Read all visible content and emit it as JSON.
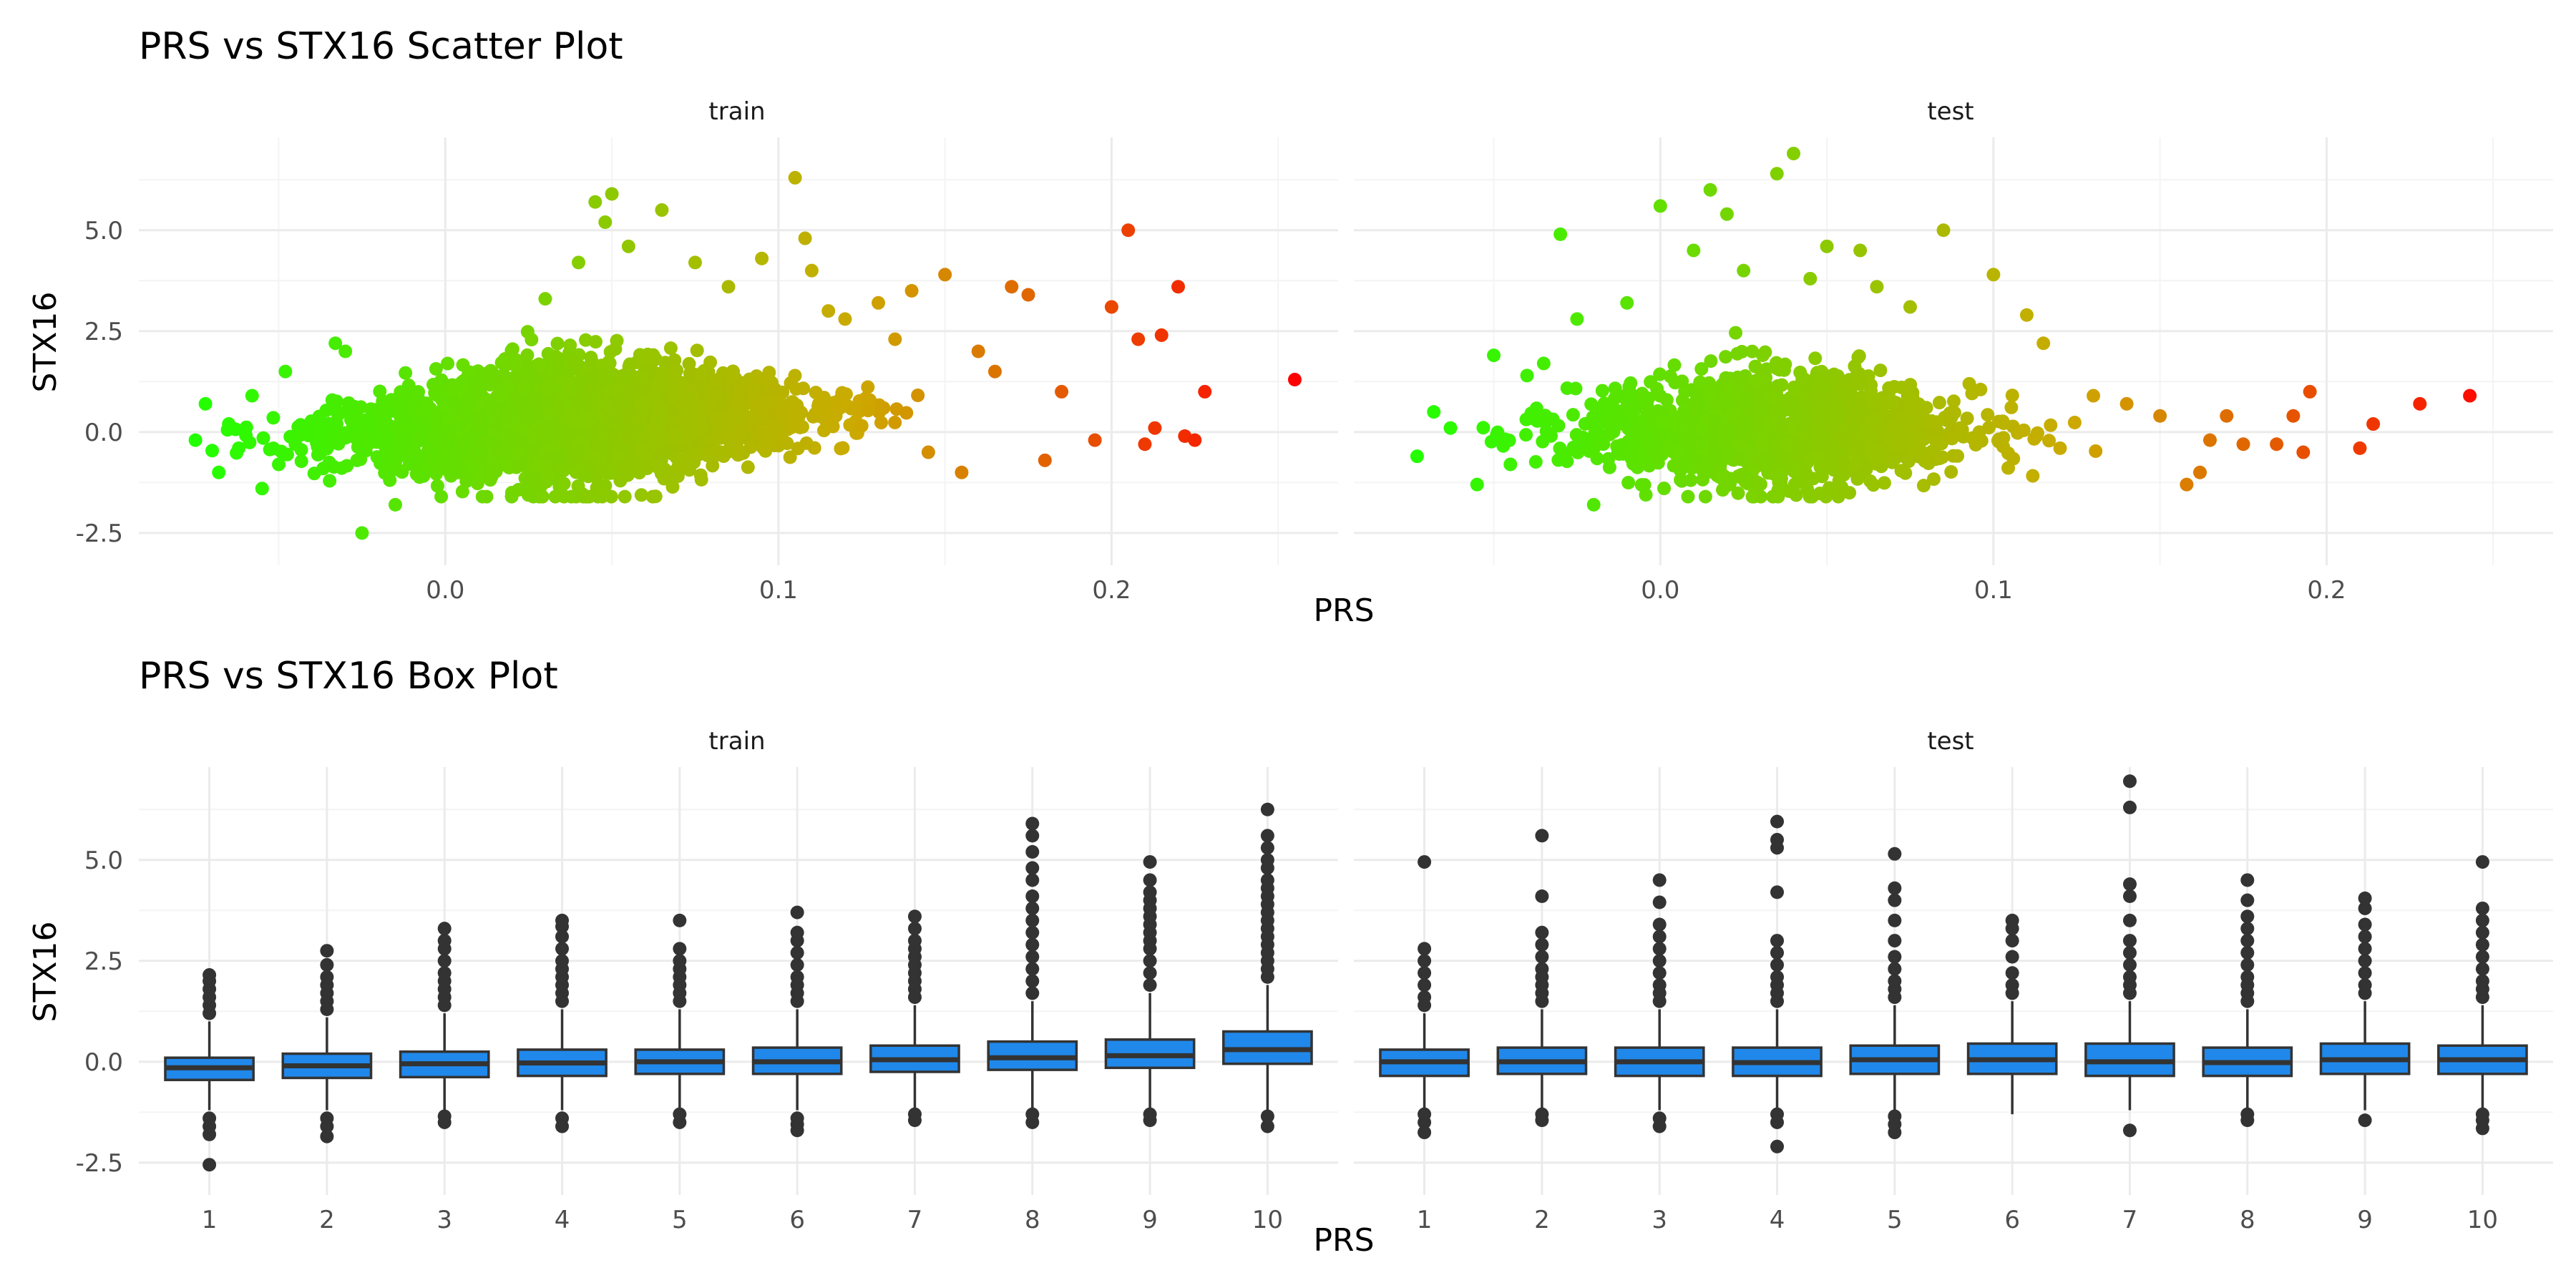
{
  "chart_data": [
    {
      "type": "scatter",
      "title": "PRS vs STX16 Scatter Plot",
      "xlabel": "PRS",
      "ylabel": "STX16",
      "facets": [
        "train",
        "test"
      ],
      "xlim": [
        -0.092,
        0.268
      ],
      "ylim": [
        -3.3,
        7.3
      ],
      "x_ticks": [
        "0.0",
        "0.1",
        "0.2"
      ],
      "y_ticks": [
        "-2.5",
        "0.0",
        "2.5",
        "5.0"
      ],
      "color_scale": {
        "low": "#22ff00",
        "mid": "#ccaa00",
        "high": "#ff0000",
        "by": "PRS"
      },
      "grid": true,
      "series": [
        {
          "facet": "train",
          "points": [
            [
              -0.075,
              -0.2
            ],
            [
              -0.072,
              0.7
            ],
            [
              -0.068,
              -1.0
            ],
            [
              -0.065,
              0.2
            ],
            [
              -0.062,
              -0.4
            ],
            [
              -0.058,
              0.9
            ],
            [
              -0.055,
              -1.4
            ],
            [
              -0.05,
              -0.8
            ],
            [
              -0.048,
              1.5
            ],
            [
              -0.045,
              -0.3
            ],
            [
              -0.033,
              2.2
            ],
            [
              -0.03,
              2.0
            ],
            [
              -0.025,
              -2.5
            ],
            [
              -0.015,
              -1.8
            ],
            [
              0.02,
              -1.5
            ],
            [
              0.03,
              3.3
            ],
            [
              0.04,
              4.2
            ],
            [
              0.045,
              5.7
            ],
            [
              0.05,
              5.9
            ],
            [
              0.048,
              5.2
            ],
            [
              0.055,
              4.6
            ],
            [
              0.065,
              5.5
            ],
            [
              0.075,
              4.2
            ],
            [
              0.085,
              3.6
            ],
            [
              0.095,
              4.3
            ],
            [
              0.105,
              6.3
            ],
            [
              0.108,
              4.8
            ],
            [
              0.11,
              4.0
            ],
            [
              0.115,
              3.0
            ],
            [
              0.12,
              2.8
            ],
            [
              0.13,
              3.2
            ],
            [
              0.135,
              2.3
            ],
            [
              0.14,
              3.5
            ],
            [
              0.145,
              -0.5
            ],
            [
              0.15,
              3.9
            ],
            [
              0.155,
              -1.0
            ],
            [
              0.16,
              2.0
            ],
            [
              0.165,
              1.5
            ],
            [
              0.17,
              3.6
            ],
            [
              0.175,
              3.4
            ],
            [
              0.18,
              -0.7
            ],
            [
              0.185,
              1.0
            ],
            [
              0.195,
              -0.2
            ],
            [
              0.2,
              3.1
            ],
            [
              0.205,
              5.0
            ],
            [
              0.208,
              2.3
            ],
            [
              0.21,
              -0.3
            ],
            [
              0.213,
              0.1
            ],
            [
              0.215,
              2.4
            ],
            [
              0.22,
              3.6
            ],
            [
              0.222,
              -0.1
            ],
            [
              0.225,
              -0.2
            ],
            [
              0.228,
              1.0
            ],
            [
              0.255,
              1.3
            ]
          ]
        },
        {
          "facet": "test",
          "points": [
            [
              -0.073,
              -0.6
            ],
            [
              -0.068,
              0.5
            ],
            [
              -0.063,
              0.1
            ],
            [
              -0.055,
              -1.3
            ],
            [
              -0.05,
              1.9
            ],
            [
              -0.045,
              -0.8
            ],
            [
              -0.04,
              1.4
            ],
            [
              -0.035,
              1.7
            ],
            [
              -0.03,
              4.9
            ],
            [
              -0.025,
              2.8
            ],
            [
              -0.02,
              -1.8
            ],
            [
              -0.01,
              3.2
            ],
            [
              0.0,
              5.6
            ],
            [
              0.01,
              4.5
            ],
            [
              0.015,
              6.0
            ],
            [
              0.02,
              5.4
            ],
            [
              0.025,
              4.0
            ],
            [
              0.035,
              6.4
            ],
            [
              0.04,
              6.9
            ],
            [
              0.045,
              3.8
            ],
            [
              0.05,
              4.6
            ],
            [
              0.06,
              4.5
            ],
            [
              0.065,
              3.6
            ],
            [
              0.075,
              3.1
            ],
            [
              0.085,
              5.0
            ],
            [
              0.1,
              3.9
            ],
            [
              0.11,
              2.9
            ],
            [
              0.115,
              2.2
            ],
            [
              0.12,
              -0.4
            ],
            [
              0.13,
              0.9
            ],
            [
              0.14,
              0.7
            ],
            [
              0.15,
              0.4
            ],
            [
              0.158,
              -1.3
            ],
            [
              0.162,
              -1.0
            ],
            [
              0.165,
              -0.2
            ],
            [
              0.17,
              0.4
            ],
            [
              0.175,
              -0.3
            ],
            [
              0.185,
              -0.3
            ],
            [
              0.19,
              0.4
            ],
            [
              0.193,
              -0.5
            ],
            [
              0.195,
              1.0
            ],
            [
              0.21,
              -0.4
            ],
            [
              0.214,
              0.2
            ],
            [
              0.228,
              0.7
            ],
            [
              0.243,
              0.9
            ]
          ]
        }
      ]
    },
    {
      "type": "box",
      "title": "PRS vs STX16 Box Plot",
      "xlabel": "PRS",
      "ylabel": "STX16",
      "facets": [
        "train",
        "test"
      ],
      "categories": [
        "1",
        "2",
        "3",
        "4",
        "5",
        "6",
        "7",
        "8",
        "9",
        "10"
      ],
      "ylim": [
        -3.3,
        7.3
      ],
      "y_ticks": [
        "-2.5",
        "0.0",
        "2.5",
        "5.0"
      ],
      "box_color": "#2088ea",
      "grid": true,
      "series": [
        {
          "facet": "train",
          "boxes": [
            {
              "q1": -0.45,
              "median": -0.15,
              "q3": 0.1,
              "low": -1.2,
              "high": 1.0,
              "outliers": [
                1.2,
                1.4,
                1.6,
                1.8,
                2.0,
                2.15,
                -1.4,
                -1.6,
                -1.8,
                -2.55
              ]
            },
            {
              "q1": -0.4,
              "median": -0.1,
              "q3": 0.2,
              "low": -1.2,
              "high": 1.1,
              "outliers": [
                1.3,
                1.5,
                1.7,
                1.9,
                2.1,
                2.4,
                2.75,
                -1.4,
                -1.6,
                -1.85
              ]
            },
            {
              "q1": -0.38,
              "median": -0.05,
              "q3": 0.25,
              "low": -1.2,
              "high": 1.2,
              "outliers": [
                1.4,
                1.6,
                1.8,
                2.0,
                2.2,
                2.5,
                2.8,
                3.0,
                3.3,
                -1.35,
                -1.5
              ]
            },
            {
              "q1": -0.35,
              "median": -0.03,
              "q3": 0.3,
              "low": -1.2,
              "high": 1.3,
              "outliers": [
                1.5,
                1.7,
                1.9,
                2.1,
                2.3,
                2.5,
                2.8,
                3.1,
                3.35,
                3.5,
                -1.4,
                -1.6
              ]
            },
            {
              "q1": -0.3,
              "median": 0.0,
              "q3": 0.3,
              "low": -1.2,
              "high": 1.3,
              "outliers": [
                1.5,
                1.7,
                1.9,
                2.1,
                2.3,
                2.5,
                2.8,
                3.5,
                -1.3,
                -1.5
              ]
            },
            {
              "q1": -0.3,
              "median": 0.0,
              "q3": 0.35,
              "low": -1.2,
              "high": 1.3,
              "outliers": [
                1.5,
                1.7,
                1.9,
                2.1,
                2.4,
                2.7,
                3.0,
                3.2,
                3.7,
                -1.4,
                -1.55,
                -1.7
              ]
            },
            {
              "q1": -0.25,
              "median": 0.05,
              "q3": 0.4,
              "low": -1.2,
              "high": 1.4,
              "outliers": [
                1.6,
                1.8,
                2.0,
                2.2,
                2.4,
                2.6,
                2.8,
                3.0,
                3.3,
                3.6,
                -1.3,
                -1.45
              ]
            },
            {
              "q1": -0.2,
              "median": 0.1,
              "q3": 0.5,
              "low": -1.2,
              "high": 1.5,
              "outliers": [
                1.7,
                2.0,
                2.3,
                2.6,
                2.9,
                3.2,
                3.5,
                3.8,
                4.1,
                4.5,
                4.8,
                5.2,
                5.6,
                5.9,
                -1.3,
                -1.5
              ]
            },
            {
              "q1": -0.15,
              "median": 0.15,
              "q3": 0.55,
              "low": -1.2,
              "high": 1.7,
              "outliers": [
                1.9,
                2.2,
                2.5,
                2.8,
                3.0,
                3.2,
                3.4,
                3.6,
                3.8,
                4.0,
                4.2,
                4.5,
                4.95,
                -1.3,
                -1.45
              ]
            },
            {
              "q1": -0.05,
              "median": 0.3,
              "q3": 0.75,
              "low": -1.2,
              "high": 1.9,
              "outliers": [
                2.1,
                2.3,
                2.5,
                2.7,
                2.9,
                3.1,
                3.3,
                3.5,
                3.7,
                3.9,
                4.1,
                4.3,
                4.5,
                4.8,
                5.0,
                5.3,
                5.6,
                6.25,
                -1.35,
                -1.6
              ]
            }
          ]
        },
        {
          "facet": "test",
          "boxes": [
            {
              "q1": -0.35,
              "median": 0.0,
              "q3": 0.3,
              "low": -1.2,
              "high": 1.2,
              "outliers": [
                1.4,
                1.6,
                1.9,
                2.2,
                2.5,
                2.8,
                4.95,
                -1.3,
                -1.5,
                -1.75
              ]
            },
            {
              "q1": -0.3,
              "median": 0.0,
              "q3": 0.35,
              "low": -1.2,
              "high": 1.3,
              "outliers": [
                1.5,
                1.7,
                1.9,
                2.1,
                2.3,
                2.6,
                2.9,
                3.2,
                4.1,
                5.6,
                -1.3,
                -1.45
              ]
            },
            {
              "q1": -0.35,
              "median": 0.0,
              "q3": 0.35,
              "low": -1.2,
              "high": 1.3,
              "outliers": [
                1.5,
                1.7,
                1.9,
                2.2,
                2.5,
                2.8,
                3.1,
                3.4,
                3.95,
                4.5,
                -1.4,
                -1.6
              ]
            },
            {
              "q1": -0.35,
              "median": -0.02,
              "q3": 0.35,
              "low": -1.2,
              "high": 1.3,
              "outliers": [
                1.5,
                1.7,
                1.9,
                2.1,
                2.4,
                2.7,
                3.0,
                4.2,
                5.3,
                5.5,
                5.95,
                -1.3,
                -1.5,
                -2.1
              ]
            },
            {
              "q1": -0.3,
              "median": 0.05,
              "q3": 0.4,
              "low": -1.2,
              "high": 1.4,
              "outliers": [
                1.6,
                1.8,
                2.0,
                2.3,
                2.6,
                3.0,
                3.5,
                4.0,
                4.3,
                5.15,
                -1.35,
                -1.55,
                -1.75
              ]
            },
            {
              "q1": -0.3,
              "median": 0.05,
              "q3": 0.45,
              "low": -1.3,
              "high": 1.5,
              "outliers": [
                1.7,
                1.9,
                2.2,
                2.6,
                3.0,
                3.3,
                3.5
              ]
            },
            {
              "q1": -0.35,
              "median": 0.0,
              "q3": 0.45,
              "low": -1.2,
              "high": 1.5,
              "outliers": [
                1.7,
                1.9,
                2.1,
                2.4,
                2.7,
                3.0,
                3.5,
                4.1,
                4.4,
                6.3,
                6.95,
                -1.7
              ]
            },
            {
              "q1": -0.35,
              "median": -0.02,
              "q3": 0.35,
              "low": -1.2,
              "high": 1.3,
              "outliers": [
                1.5,
                1.7,
                1.9,
                2.1,
                2.4,
                2.7,
                3.0,
                3.3,
                3.6,
                4.0,
                4.5,
                -1.3,
                -1.45
              ]
            },
            {
              "q1": -0.3,
              "median": 0.05,
              "q3": 0.45,
              "low": -1.2,
              "high": 1.5,
              "outliers": [
                1.7,
                1.9,
                2.2,
                2.5,
                2.8,
                3.1,
                3.4,
                3.8,
                4.05,
                -1.45
              ]
            },
            {
              "q1": -0.3,
              "median": 0.05,
              "q3": 0.4,
              "low": -1.2,
              "high": 1.4,
              "outliers": [
                1.6,
                1.8,
                2.0,
                2.3,
                2.6,
                2.9,
                3.2,
                3.5,
                3.8,
                4.95,
                -1.3,
                -1.45,
                -1.65
              ]
            }
          ]
        }
      ]
    }
  ]
}
